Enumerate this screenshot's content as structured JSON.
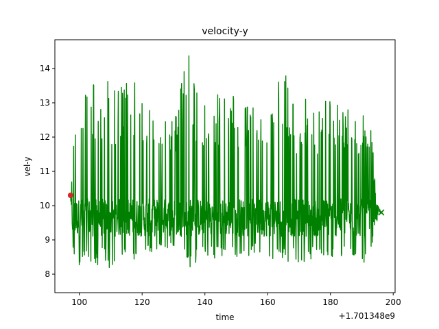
{
  "chart_data": {
    "type": "line",
    "title": "velocity-y",
    "xlabel": "time",
    "ylabel": "vel-y",
    "x_offset_label": "+1.701348e9",
    "xlim": [
      92.2,
      200.6
    ],
    "ylim": [
      7.46,
      14.84
    ],
    "x_ticks": [
      100,
      120,
      140,
      160,
      180,
      200
    ],
    "x_tick_labels": [
      "100",
      "120",
      "140",
      "160",
      "180",
      "200"
    ],
    "y_ticks": [
      8,
      9,
      10,
      11,
      12,
      13,
      14
    ],
    "y_tick_labels": [
      "8",
      "9",
      "10",
      "11",
      "12",
      "13",
      "14"
    ],
    "grid": false,
    "legend": "none",
    "series": [
      {
        "color": "#008000",
        "x_start": 97.2,
        "x_end": 196.2,
        "dense_band": [
          9.1,
          10.2
        ],
        "envelope": [
          {
            "x": 97.2,
            "low": 10.3,
            "high": 10.3
          },
          {
            "x": 98.0,
            "low": 8.5,
            "high": 12.2
          },
          {
            "x": 100.0,
            "low": 8.2,
            "high": 12.9
          },
          {
            "x": 102.0,
            "low": 8.3,
            "high": 13.7
          },
          {
            "x": 103.5,
            "low": 8.2,
            "high": 14.1
          },
          {
            "x": 106.0,
            "low": 8.2,
            "high": 13.3
          },
          {
            "x": 108.0,
            "low": 8.4,
            "high": 13.9
          },
          {
            "x": 110.0,
            "low": 8.1,
            "high": 13.7
          },
          {
            "x": 113.0,
            "low": 8.5,
            "high": 13.6
          },
          {
            "x": 117.0,
            "low": 8.4,
            "high": 13.7
          },
          {
            "x": 120.0,
            "low": 8.5,
            "high": 13.2
          },
          {
            "x": 124.0,
            "low": 8.6,
            "high": 12.9
          },
          {
            "x": 127.0,
            "low": 8.8,
            "high": 12.6
          },
          {
            "x": 130.0,
            "low": 8.7,
            "high": 12.8
          },
          {
            "x": 132.0,
            "low": 8.5,
            "high": 13.5
          },
          {
            "x": 135.0,
            "low": 8.1,
            "high": 14.5
          },
          {
            "x": 138.0,
            "low": 8.4,
            "high": 13.1
          },
          {
            "x": 141.0,
            "low": 8.4,
            "high": 12.9
          },
          {
            "x": 144.0,
            "low": 8.5,
            "high": 13.4
          },
          {
            "x": 147.0,
            "low": 8.4,
            "high": 13.3
          },
          {
            "x": 150.0,
            "low": 8.4,
            "high": 13.3
          },
          {
            "x": 153.0,
            "low": 8.5,
            "high": 12.9
          },
          {
            "x": 156.0,
            "low": 8.6,
            "high": 12.9
          },
          {
            "x": 159.0,
            "low": 8.6,
            "high": 12.7
          },
          {
            "x": 162.0,
            "low": 8.3,
            "high": 13.3
          },
          {
            "x": 165.0,
            "low": 8.4,
            "high": 14.0
          },
          {
            "x": 168.0,
            "low": 8.3,
            "high": 13.2
          },
          {
            "x": 171.0,
            "low": 8.3,
            "high": 13.0
          },
          {
            "x": 174.0,
            "low": 8.4,
            "high": 13.3
          },
          {
            "x": 177.0,
            "low": 8.5,
            "high": 12.9
          },
          {
            "x": 180.0,
            "low": 8.3,
            "high": 13.5
          },
          {
            "x": 183.0,
            "low": 8.4,
            "high": 13.0
          },
          {
            "x": 186.0,
            "low": 8.6,
            "high": 13.0
          },
          {
            "x": 188.0,
            "low": 8.5,
            "high": 12.6
          },
          {
            "x": 190.0,
            "low": 8.4,
            "high": 12.8
          },
          {
            "x": 191.5,
            "low": 7.8,
            "high": 12.6
          },
          {
            "x": 193.5,
            "low": 9.0,
            "high": 12.0
          },
          {
            "x": 194.5,
            "low": 9.5,
            "high": 10.1
          },
          {
            "x": 196.2,
            "low": 9.8,
            "high": 9.8
          }
        ]
      }
    ],
    "markers": [
      {
        "shape": "circle",
        "color": "#d62728",
        "x": 97.2,
        "y": 10.3
      },
      {
        "shape": "x",
        "color": "#008000",
        "x": 196.2,
        "y": 9.8
      }
    ]
  }
}
